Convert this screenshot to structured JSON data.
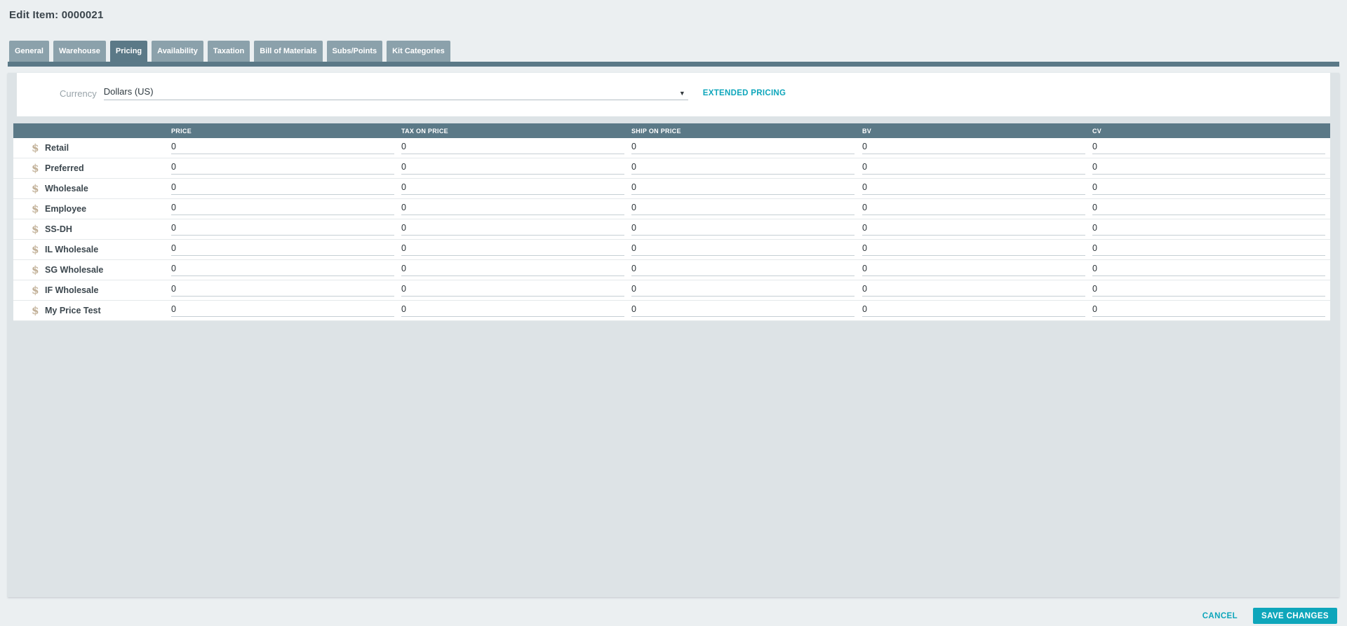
{
  "page": {
    "title": "Edit Item: 0000021"
  },
  "tabs": [
    {
      "label": "General",
      "active": false
    },
    {
      "label": "Warehouse",
      "active": false
    },
    {
      "label": "Pricing",
      "active": true
    },
    {
      "label": "Availability",
      "active": false
    },
    {
      "label": "Taxation",
      "active": false
    },
    {
      "label": "Bill of Materials",
      "active": false
    },
    {
      "label": "Subs/Points",
      "active": false
    },
    {
      "label": "Kit Categories",
      "active": false
    }
  ],
  "pricing_panel": {
    "currency_label": "Currency",
    "currency_value": "Dollars (US)",
    "extended_pricing_label": "EXTENDED PRICING",
    "table": {
      "columns": [
        "PRICE",
        "TAX ON PRICE",
        "SHIP ON PRICE",
        "BV",
        "CV"
      ],
      "rows": [
        {
          "label": "Retail",
          "values": [
            "0",
            "0",
            "0",
            "0",
            "0"
          ]
        },
        {
          "label": "Preferred",
          "values": [
            "0",
            "0",
            "0",
            "0",
            "0"
          ]
        },
        {
          "label": "Wholesale",
          "values": [
            "0",
            "0",
            "0",
            "0",
            "0"
          ]
        },
        {
          "label": "Employee",
          "values": [
            "0",
            "0",
            "0",
            "0",
            "0"
          ]
        },
        {
          "label": "SS-DH",
          "values": [
            "0",
            "0",
            "0",
            "0",
            "0"
          ]
        },
        {
          "label": "IL Wholesale",
          "values": [
            "0",
            "0",
            "0",
            "0",
            "0"
          ]
        },
        {
          "label": "SG Wholesale",
          "values": [
            "0",
            "0",
            "0",
            "0",
            "0"
          ]
        },
        {
          "label": "IF Wholesale",
          "values": [
            "0",
            "0",
            "0",
            "0",
            "0"
          ]
        },
        {
          "label": "My Price Test",
          "values": [
            "0",
            "0",
            "0",
            "0",
            "0"
          ]
        }
      ]
    }
  },
  "footer": {
    "cancel_label": "CANCEL",
    "save_label": "SAVE CHANGES"
  },
  "icons": {
    "dollar": "$",
    "dropdown_arrow": "▼"
  },
  "colors": {
    "accent": "#0ea6bb",
    "tab_active": "#5b7987",
    "tab_inactive": "#8ba1ab",
    "table_header": "#5b7987",
    "panel_background": "#dde3e6",
    "page_background": "#ebeff1"
  }
}
